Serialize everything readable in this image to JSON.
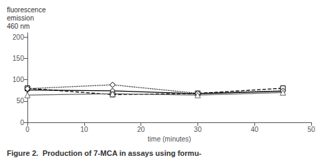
{
  "chart_data": {
    "type": "line",
    "ylabel": "fluorescence\nemission\n460 nm",
    "xlabel": "time (minutes)",
    "caption": "Figure 2.  Production of 7-MCA in assays using formu-",
    "x": [
      0,
      15,
      30,
      45
    ],
    "xlim": [
      0,
      50
    ],
    "xticks": [
      0,
      10,
      20,
      30,
      40,
      50
    ],
    "ylim": [
      0,
      210
    ],
    "yticks": [
      0,
      50,
      100,
      150,
      200
    ],
    "grid": false,
    "series": [
      {
        "color": "#000000",
        "marker": "circle",
        "line_style": "solid",
        "values": [
          76,
          74,
          67,
          73
        ]
      },
      {
        "color": "#000000",
        "marker": "square",
        "line_style": "dashed",
        "values": [
          80,
          65,
          68,
          80
        ]
      },
      {
        "color": "#000000",
        "marker": "diamond",
        "line_style": "dotted",
        "values": [
          79,
          88,
          68,
          74
        ]
      },
      {
        "color": "#666666",
        "marker": "triangle",
        "line_style": "solid",
        "values": [
          64,
          67,
          64,
          70
        ]
      }
    ]
  }
}
